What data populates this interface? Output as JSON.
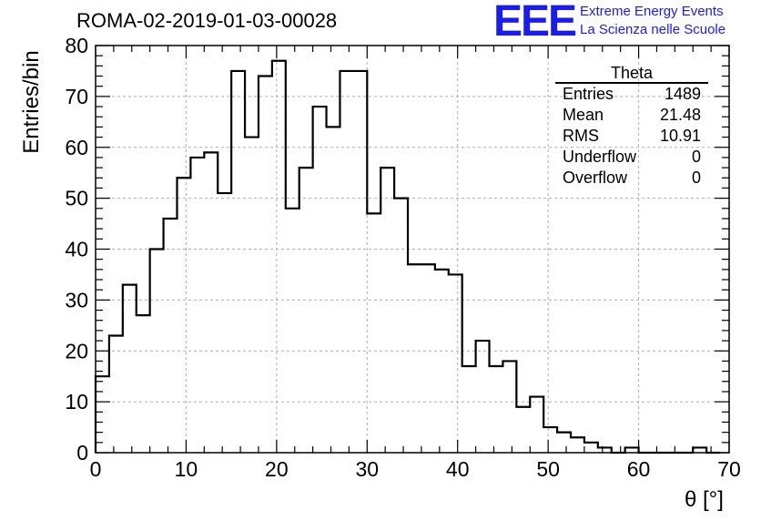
{
  "header": {
    "title": "ROMA-02-2019-01-03-00028",
    "logo_text": "EEE",
    "logo_line1": "Extreme Energy Events",
    "logo_line2": "La Scienza nelle Scuole",
    "brand_color": "#1a1aff"
  },
  "stats": {
    "name": "Theta",
    "rows": [
      {
        "label": "Entries",
        "value": "1489"
      },
      {
        "label": "Mean",
        "value": "21.48"
      },
      {
        "label": "RMS",
        "value": "10.91"
      },
      {
        "label": "Underflow",
        "value": "0"
      },
      {
        "label": "Overflow",
        "value": "0"
      }
    ]
  },
  "chart_data": {
    "type": "bar",
    "histogram": true,
    "xlabel": "θ [°]",
    "ylabel": "Entries/bin",
    "xlim": [
      0,
      70
    ],
    "ylim": [
      0,
      80
    ],
    "xticks": [
      0,
      10,
      20,
      30,
      40,
      50,
      60,
      70
    ],
    "yticks": [
      0,
      10,
      20,
      30,
      40,
      50,
      60,
      70,
      80
    ],
    "grid": true,
    "bin_width": 1.5,
    "bin_edges_start": 0,
    "values": [
      15,
      23,
      33,
      27,
      40,
      46,
      54,
      58,
      59,
      51,
      75,
      62,
      74,
      77,
      48,
      56,
      68,
      64,
      75,
      75,
      47,
      56,
      50,
      37,
      37,
      36,
      35,
      17,
      22,
      17,
      18,
      9,
      11,
      5,
      4,
      3,
      2,
      1,
      0,
      1,
      0,
      0,
      0,
      0,
      1,
      0
    ]
  }
}
